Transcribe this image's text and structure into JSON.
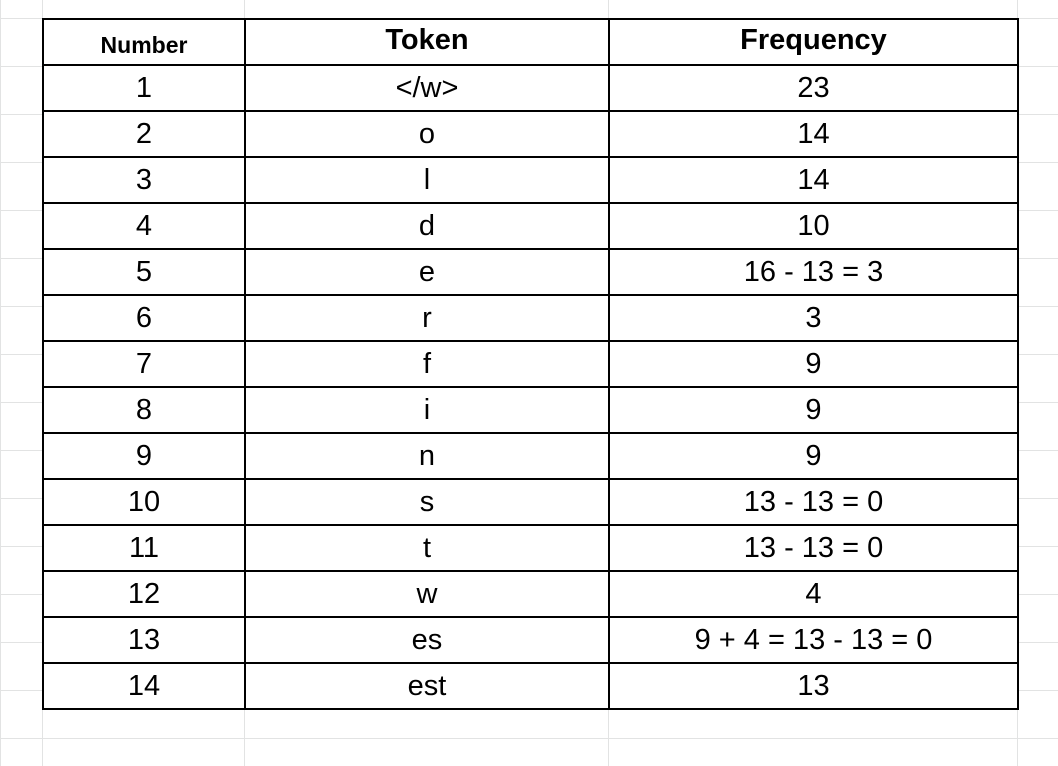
{
  "table": {
    "headers": {
      "number": "Number",
      "token": "Token",
      "frequency": "Frequency"
    },
    "rows": [
      {
        "number": "1",
        "token": "</w>",
        "frequency": "23"
      },
      {
        "number": "2",
        "token": "o",
        "frequency": "14"
      },
      {
        "number": "3",
        "token": "l",
        "frequency": "14"
      },
      {
        "number": "4",
        "token": "d",
        "frequency": "10"
      },
      {
        "number": "5",
        "token": "e",
        "frequency": "16 - 13 = 3"
      },
      {
        "number": "6",
        "token": "r",
        "frequency": "3"
      },
      {
        "number": "7",
        "token": "f",
        "frequency": "9"
      },
      {
        "number": "8",
        "token": "i",
        "frequency": "9"
      },
      {
        "number": "9",
        "token": "n",
        "frequency": "9"
      },
      {
        "number": "10",
        "token": "s",
        "frequency": "13 - 13 = 0"
      },
      {
        "number": "11",
        "token": "t",
        "frequency": "13 - 13 = 0"
      },
      {
        "number": "12",
        "token": "w",
        "frequency": "4"
      },
      {
        "number": "13",
        "token": "es",
        "frequency": "9 + 4 = 13 - 13 = 0"
      },
      {
        "number": "14",
        "token": "est",
        "frequency": "13"
      }
    ]
  },
  "colors": {
    "border": "#000000",
    "gridline": "#e2e3e3",
    "background": "#ffffff"
  }
}
